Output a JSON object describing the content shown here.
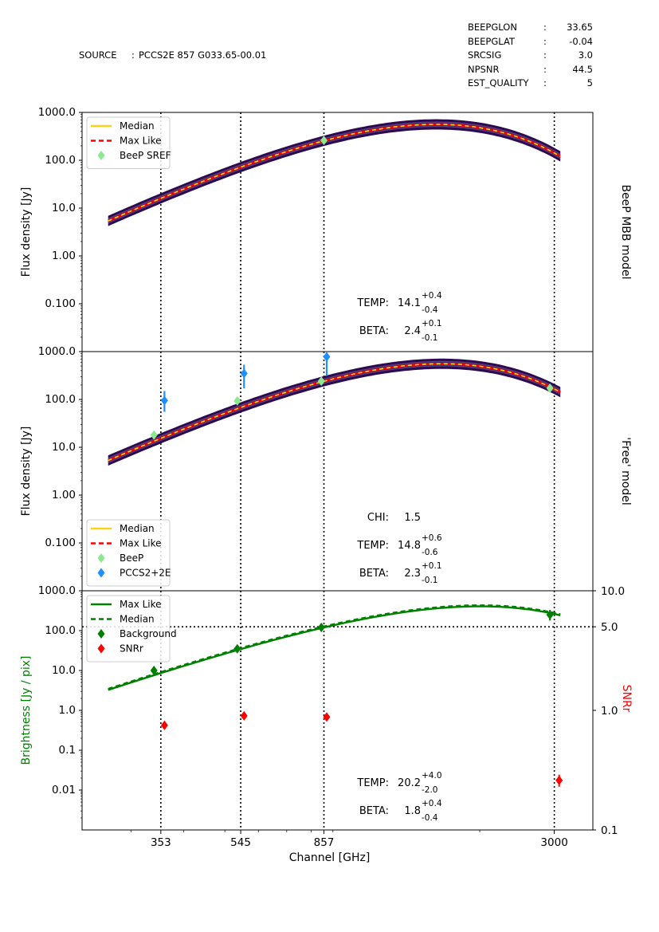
{
  "header": {
    "source_label": "SOURCE",
    "source_sep": ":",
    "source_value": "PCCS2E 857 G033.65-00.01",
    "meta": [
      {
        "key": "BEEPGLON",
        "sep": ":",
        "value": "33.65"
      },
      {
        "key": "BEEPGLAT",
        "sep": ":",
        "value": "-0.04"
      },
      {
        "key": "SRCSIG",
        "sep": ":",
        "value": "3.0"
      },
      {
        "key": "NPSNR",
        "sep": ":",
        "value": "44.5"
      },
      {
        "key": "EST_QUALITY",
        "sep": ":",
        "value": "5"
      }
    ]
  },
  "colors": {
    "median": "#ffd21a",
    "maxlike": "#ff0000",
    "band_dark": "#2c0a4f",
    "band_light": "#8a6aa2",
    "beep": "#8ee88e",
    "pccs": "#1e8fff",
    "bg_green": "#008000",
    "snr_red": "#ff0000"
  },
  "chart_data": [
    {
      "type": "line",
      "panel": "BeeP MBB model",
      "ylabel": "Flux density  [Jy]",
      "yscale": "log",
      "ylim": [
        0.01,
        1000
      ],
      "yticks": [
        {
          "v": 1000,
          "label": "1000.0"
        },
        {
          "v": 100,
          "label": "100.0"
        },
        {
          "v": 10,
          "label": "10.0"
        },
        {
          "v": 1,
          "label": "1.00"
        },
        {
          "v": 0.1,
          "label": "0.100"
        }
      ],
      "model": {
        "temp": 14.1,
        "beta": 2.4,
        "s857": 255
      },
      "points": [
        {
          "series": "BeeP SREF",
          "x": 857,
          "y": 260
        }
      ],
      "legend": {
        "position": "upper-left",
        "entries": [
          {
            "label": "Median",
            "kind": "line-median"
          },
          {
            "label": "Max Like",
            "kind": "line-maxlike"
          },
          {
            "label": "BeeP SREF",
            "kind": "diamond-beep"
          }
        ]
      },
      "annotations": [
        {
          "label": "TEMP:",
          "value": "14.1",
          "plus": "+0.4",
          "minus": "-0.4"
        },
        {
          "label": "BETA:",
          "value": "2.4",
          "plus": "+0.1",
          "minus": "-0.1"
        }
      ]
    },
    {
      "type": "line",
      "panel": "'Free' model",
      "ylabel": "Flux density  [Jy]",
      "yscale": "log",
      "ylim": [
        0.01,
        1000
      ],
      "yticks": [
        {
          "v": 1000,
          "label": "1000.0"
        },
        {
          "v": 100,
          "label": "100.0"
        },
        {
          "v": 10,
          "label": "10.0"
        },
        {
          "v": 1,
          "label": "1.00"
        },
        {
          "v": 0.1,
          "label": "0.100"
        }
      ],
      "model": {
        "temp": 14.8,
        "beta": 2.3,
        "s857": 240
      },
      "points": [
        {
          "series": "BeeP",
          "x": 340,
          "y": 18
        },
        {
          "series": "BeeP",
          "x": 535,
          "y": 93
        },
        {
          "series": "BeeP",
          "x": 845,
          "y": 240
        },
        {
          "series": "BeeP",
          "x": 2930,
          "y": 172
        },
        {
          "series": "PCCS2+2E",
          "x": 360,
          "y": 95,
          "ylo": 55,
          "yhi": 150
        },
        {
          "series": "PCCS2+2E",
          "x": 555,
          "y": 350,
          "ylo": 170,
          "yhi": 530
        },
        {
          "series": "PCCS2+2E",
          "x": 870,
          "y": 780,
          "ylo": 310,
          "yhi": 950
        }
      ],
      "legend": {
        "position": "lower-left",
        "entries": [
          {
            "label": "Median",
            "kind": "line-median"
          },
          {
            "label": "Max Like",
            "kind": "line-maxlike"
          },
          {
            "label": "BeeP",
            "kind": "diamond-beep"
          },
          {
            "label": "PCCS2+2E",
            "kind": "diamond-pccs"
          }
        ]
      },
      "annotations": [
        {
          "label": "CHI:",
          "value": "1.5",
          "plus": "",
          "minus": ""
        },
        {
          "label": "TEMP:",
          "value": "14.8",
          "plus": "+0.6",
          "minus": "-0.6"
        },
        {
          "label": "BETA:",
          "value": "2.3",
          "plus": "+0.1",
          "minus": "-0.1"
        }
      ]
    },
    {
      "type": "line",
      "panel": "background",
      "ylabel": "Brightness [Jy / pix]",
      "ylabel_right": "SNRr",
      "xlabel": "Channel [GHz]",
      "yscale": "log",
      "ylim": [
        0.001,
        1000
      ],
      "yticks": [
        {
          "v": 1000,
          "label": "1000.0"
        },
        {
          "v": 100,
          "label": "100.0"
        },
        {
          "v": 10,
          "label": "10.0"
        },
        {
          "v": 1,
          "label": "1.0"
        },
        {
          "v": 0.1,
          "label": "0.1"
        },
        {
          "v": 0.01,
          "label": "0.01"
        }
      ],
      "y2lim": [
        0.1,
        10
      ],
      "y2ticks": [
        {
          "v": 10,
          "label": "10.0"
        },
        {
          "v": 5,
          "label": "5.0"
        },
        {
          "v": 1,
          "label": "1.0"
        },
        {
          "v": 0.1,
          "label": "0.1"
        }
      ],
      "snr_threshold": 5,
      "model": {
        "temp": 20.2,
        "beta": 1.8,
        "s857": 120
      },
      "points": [
        {
          "series": "Background",
          "x": 340,
          "y": 10,
          "ylo": 8,
          "yhi": 12.5
        },
        {
          "series": "Background",
          "x": 535,
          "y": 35,
          "ylo": 28,
          "yhi": 43
        },
        {
          "series": "Background",
          "x": 845,
          "y": 120,
          "ylo": 95,
          "yhi": 150
        },
        {
          "series": "Background",
          "x": 2930,
          "y": 250,
          "ylo": 180,
          "yhi": 330
        }
      ],
      "snr_points": [
        {
          "x": 360,
          "y": 0.75
        },
        {
          "x": 555,
          "y": 0.9
        },
        {
          "x": 870,
          "y": 0.88
        },
        {
          "x": 3080,
          "y": 0.26,
          "ylo": 0.23,
          "yhi": 0.29
        }
      ],
      "legend": {
        "position": "upper-left",
        "entries": [
          {
            "label": "Max Like",
            "kind": "line-green"
          },
          {
            "label": "Median",
            "kind": "line-green-dash"
          },
          {
            "label": "Background",
            "kind": "diamond-green"
          },
          {
            "label": "SNRr",
            "kind": "diamond-red"
          }
        ]
      },
      "annotations": [
        {
          "label": "TEMP:",
          "value": "20.2",
          "plus": "+4.0",
          "minus": "-2.0"
        },
        {
          "label": "BETA:",
          "value": "1.8",
          "plus": "+0.4",
          "minus": "-0.4"
        }
      ]
    }
  ],
  "xaxis": {
    "scale": "log",
    "xlim": [
      230,
      3700
    ],
    "model_range": [
      265,
      3100
    ],
    "channels": [
      353,
      545,
      857,
      3000
    ],
    "tick_labels": [
      "353",
      "545",
      "857",
      "3000"
    ],
    "xlabel": "Channel [GHz]"
  }
}
